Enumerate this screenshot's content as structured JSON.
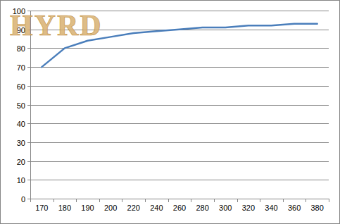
{
  "chart_data": {
    "type": "line",
    "annotations": [
      "HYRD"
    ],
    "categories": [
      "170",
      "180",
      "190",
      "200",
      "220",
      "240",
      "260",
      "280",
      "300",
      "320",
      "340",
      "360",
      "380"
    ],
    "values": [
      70,
      80,
      84,
      86,
      88,
      89,
      90,
      91,
      91,
      92,
      92,
      93,
      93
    ],
    "color": "#4a7ebb",
    "ylim": [
      0,
      100
    ],
    "yticks": [
      0,
      10,
      20,
      30,
      40,
      50,
      60,
      70,
      80,
      90,
      100
    ],
    "grid": true
  }
}
